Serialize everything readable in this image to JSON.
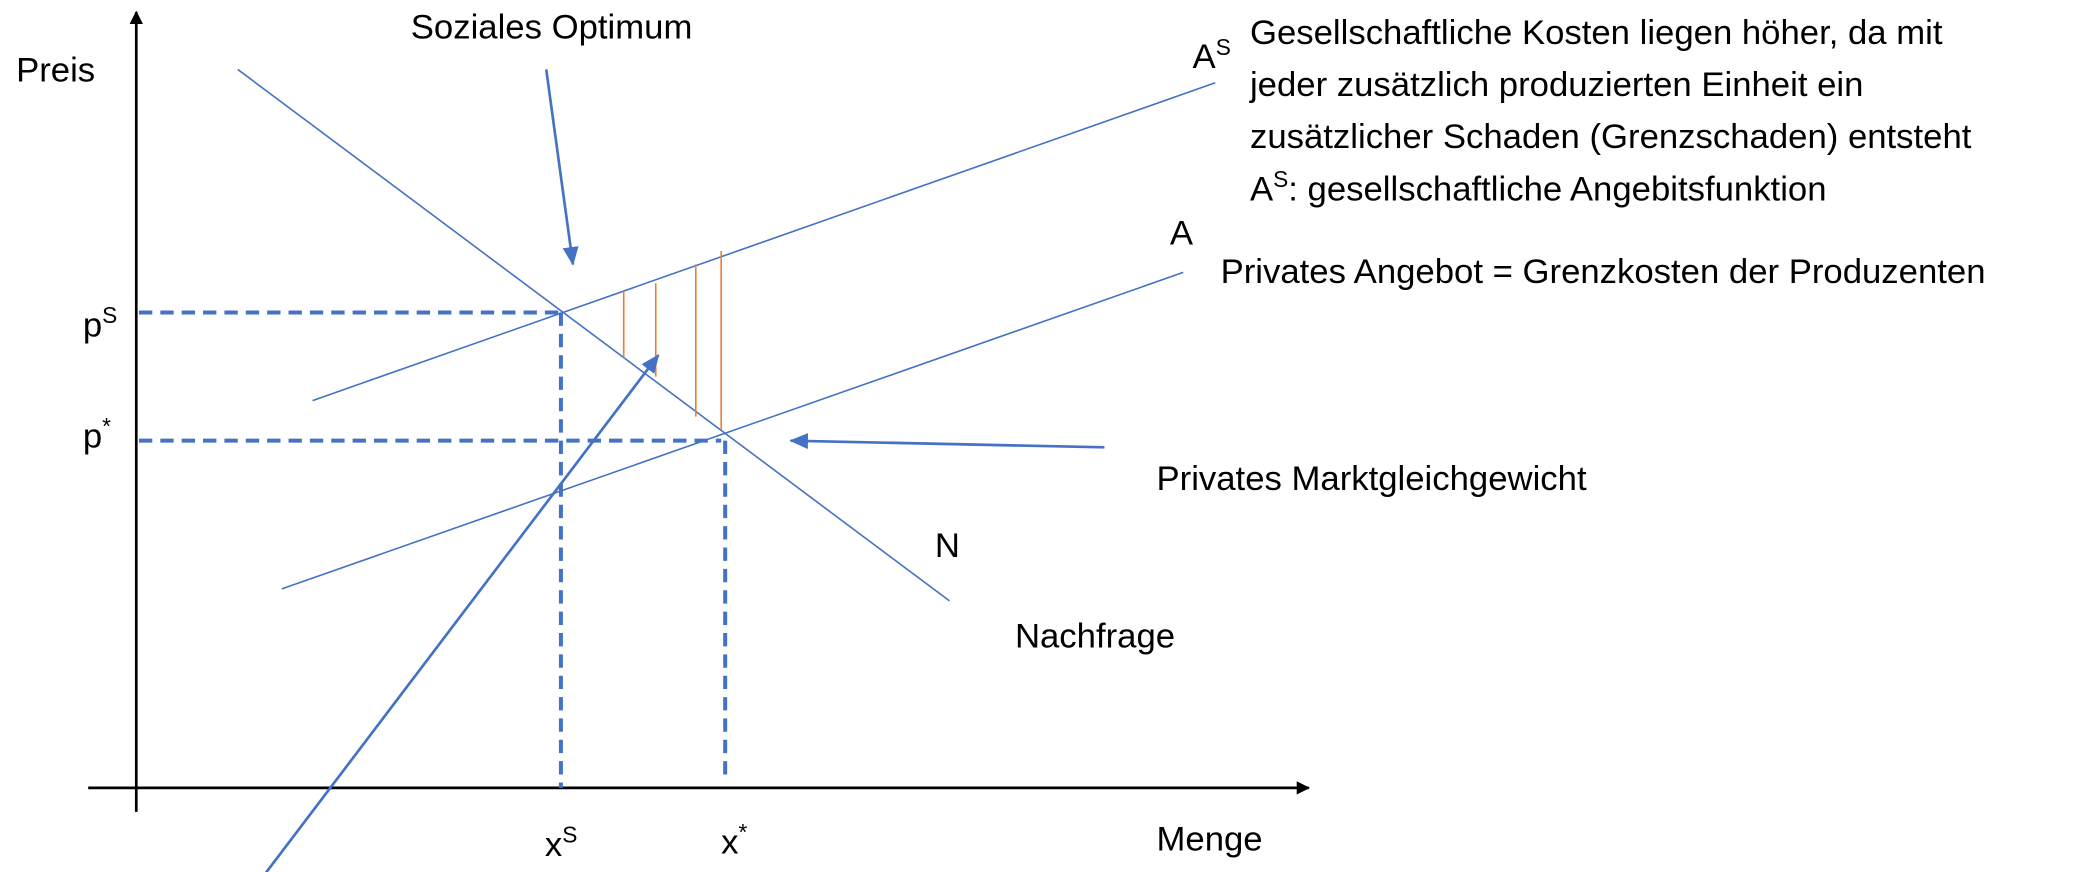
{
  "axes": {
    "y_label": "Preis",
    "x_label": "Menge"
  },
  "labels": {
    "social_optimum": "Soziales Optimum",
    "supply_social": {
      "base": "A",
      "sup": "S"
    },
    "supply_private": "A",
    "demand": "N",
    "demand_name": "Nachfrage",
    "private_equilibrium": "Privates Marktgleichgewicht",
    "private_supply": "Privates Angebot = Grenzkosten der Produzenten",
    "p_social": {
      "base": "p",
      "sup": "S"
    },
    "p_private": {
      "base": "p",
      "sup": "*"
    },
    "x_social": {
      "base": "x",
      "sup": "S"
    },
    "x_private": {
      "base": "x",
      "sup": "*"
    }
  },
  "annotation": {
    "lines": [
      "Gesellschaftliche Kosten liegen höher, da mit",
      "jeder zusätzlich produzierten Einheit ein",
      "zusätzlicher Schaden (Grenzschaden) entsteht"
    ],
    "last": {
      "base": "A",
      "sup": "S",
      "rest": ": gesellschaftliche Angebitsfunktion"
    }
  }
}
